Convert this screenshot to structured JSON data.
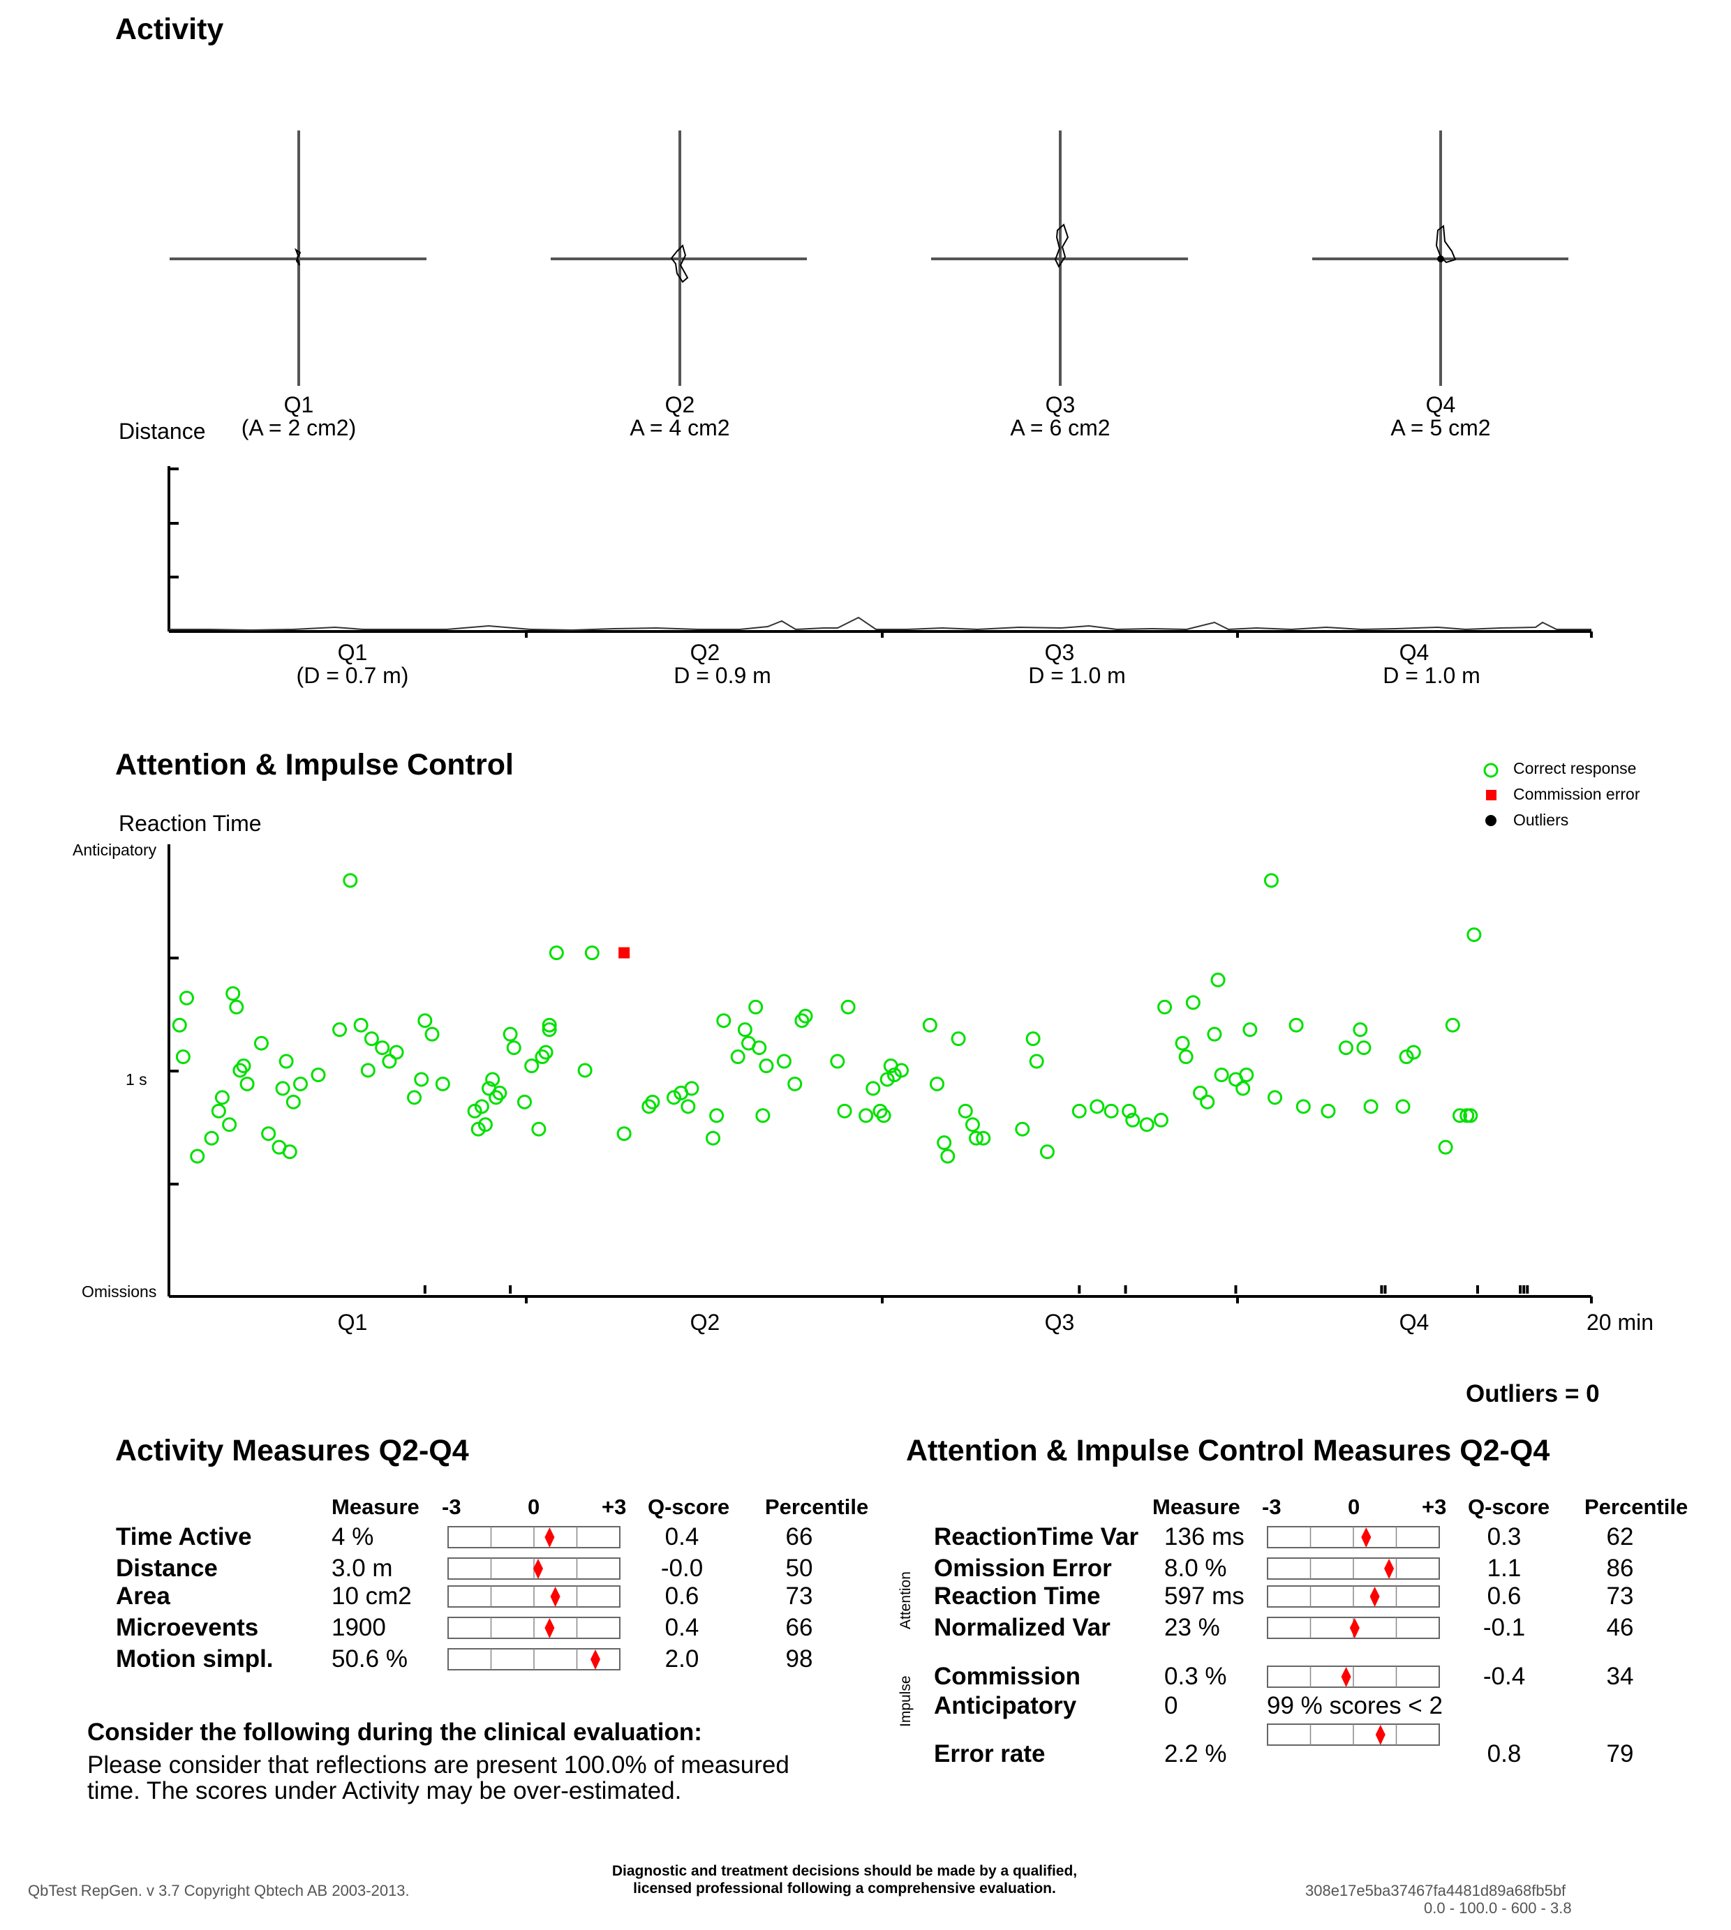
{
  "activity": {
    "title": "Activity",
    "quarters": [
      {
        "label": "Q1",
        "area": "(A = 2 cm2)",
        "distance": "(D =  0.7 m)"
      },
      {
        "label": "Q2",
        "area": "A = 4 cm2",
        "distance": "D =  0.9 m"
      },
      {
        "label": "Q3",
        "area": "A = 6 cm2",
        "distance": "D =  1.0 m"
      },
      {
        "label": "Q4",
        "area": "A = 5 cm2",
        "distance": "D =  1.0 m"
      }
    ],
    "distance_label": "Distance"
  },
  "attention": {
    "title": "Attention & Impulse Control",
    "reaction_time_label": "Reaction Time",
    "y_labels": {
      "top": "Anticipatory",
      "mid": "1 s",
      "bottom": "Omissions"
    },
    "x_labels": [
      "Q1",
      "Q2",
      "Q3",
      "Q4"
    ],
    "x_end_label": "20 min",
    "legend": [
      {
        "label": "Correct response",
        "color": "#00e000",
        "marker": "circle-open"
      },
      {
        "label": "Commission error",
        "color": "#ff0000",
        "marker": "square"
      },
      {
        "label": "Outliers",
        "color": "#000000",
        "marker": "circle-filled"
      }
    ],
    "outliers_text": "Outliers = 0"
  },
  "chart_data": {
    "type": "scatter",
    "xlabel": "",
    "ylabel": "Reaction Time",
    "xlim": [
      0,
      20
    ],
    "x_unit": "min",
    "y_ticks": [
      "Omissions",
      "",
      "1 s",
      "",
      "Anticipatory"
    ],
    "series": [
      {
        "name": "Correct response",
        "color": "#00e000",
        "points": [
          [
            0.15,
            0.6
          ],
          [
            0.2,
            0.53
          ],
          [
            0.25,
            0.66
          ],
          [
            0.4,
            0.31
          ],
          [
            0.6,
            0.35
          ],
          [
            0.7,
            0.41
          ],
          [
            0.75,
            0.44
          ],
          [
            0.85,
            0.38
          ],
          [
            0.9,
            0.67
          ],
          [
            0.95,
            0.64
          ],
          [
            1.0,
            0.5
          ],
          [
            1.05,
            0.51
          ],
          [
            1.6,
            0.46
          ],
          [
            1.65,
            0.52
          ],
          [
            1.3,
            0.56
          ],
          [
            1.1,
            0.47
          ],
          [
            1.4,
            0.36
          ],
          [
            1.55,
            0.33
          ],
          [
            1.7,
            0.32
          ],
          [
            1.75,
            0.43
          ],
          [
            1.85,
            0.47
          ],
          [
            2.1,
            0.49
          ],
          [
            2.4,
            0.59
          ],
          [
            2.55,
            0.92
          ],
          [
            2.7,
            0.6
          ],
          [
            2.8,
            0.5
          ],
          [
            2.85,
            0.57
          ],
          [
            3.0,
            0.55
          ],
          [
            3.1,
            0.52
          ],
          [
            3.2,
            0.54
          ],
          [
            3.45,
            0.44
          ],
          [
            3.55,
            0.48
          ],
          [
            3.6,
            0.61
          ],
          [
            3.7,
            0.58
          ],
          [
            3.85,
            0.47
          ],
          [
            4.3,
            0.41
          ],
          [
            4.35,
            0.37
          ],
          [
            4.4,
            0.42
          ],
          [
            4.45,
            0.38
          ],
          [
            4.5,
            0.46
          ],
          [
            4.55,
            0.48
          ],
          [
            4.6,
            0.44
          ],
          [
            4.65,
            0.45
          ],
          [
            4.8,
            0.58
          ],
          [
            4.85,
            0.55
          ],
          [
            5.0,
            0.43
          ],
          [
            5.1,
            0.51
          ],
          [
            5.2,
            0.37
          ],
          [
            5.25,
            0.53
          ],
          [
            5.3,
            0.54
          ],
          [
            5.35,
            0.6
          ],
          [
            5.35,
            0.59
          ],
          [
            5.45,
            0.76
          ],
          [
            5.85,
            0.5
          ],
          [
            5.95,
            0.76
          ],
          [
            6.4,
            0.36
          ],
          [
            6.75,
            0.42
          ],
          [
            6.8,
            0.43
          ],
          [
            7.1,
            0.44
          ],
          [
            7.2,
            0.45
          ],
          [
            7.3,
            0.42
          ],
          [
            7.35,
            0.46
          ],
          [
            7.65,
            0.35
          ],
          [
            7.7,
            0.4
          ],
          [
            7.8,
            0.61
          ],
          [
            8.0,
            0.53
          ],
          [
            8.1,
            0.59
          ],
          [
            8.15,
            0.56
          ],
          [
            8.25,
            0.64
          ],
          [
            8.3,
            0.55
          ],
          [
            8.35,
            0.4
          ],
          [
            8.4,
            0.51
          ],
          [
            8.65,
            0.52
          ],
          [
            8.8,
            0.47
          ],
          [
            8.9,
            0.61
          ],
          [
            8.95,
            0.62
          ],
          [
            9.4,
            0.52
          ],
          [
            9.5,
            0.41
          ],
          [
            9.55,
            0.64
          ],
          [
            9.8,
            0.4
          ],
          [
            9.9,
            0.46
          ],
          [
            10.0,
            0.41
          ],
          [
            10.05,
            0.4
          ],
          [
            10.1,
            0.48
          ],
          [
            10.15,
            0.51
          ],
          [
            10.2,
            0.49
          ],
          [
            10.3,
            0.5
          ],
          [
            10.7,
            0.6
          ],
          [
            10.8,
            0.47
          ],
          [
            10.9,
            0.34
          ],
          [
            10.95,
            0.31
          ],
          [
            11.1,
            0.57
          ],
          [
            11.2,
            0.41
          ],
          [
            11.3,
            0.38
          ],
          [
            11.35,
            0.35
          ],
          [
            11.45,
            0.35
          ],
          [
            12.0,
            0.37
          ],
          [
            12.15,
            0.57
          ],
          [
            12.2,
            0.52
          ],
          [
            12.35,
            0.32
          ],
          [
            12.8,
            0.41
          ],
          [
            13.05,
            0.42
          ],
          [
            13.25,
            0.41
          ],
          [
            13.5,
            0.41
          ],
          [
            13.55,
            0.39
          ],
          [
            13.75,
            0.38
          ],
          [
            13.95,
            0.39
          ],
          [
            14.0,
            0.64
          ],
          [
            14.25,
            0.56
          ],
          [
            14.3,
            0.53
          ],
          [
            14.4,
            0.65
          ],
          [
            14.5,
            0.45
          ],
          [
            14.6,
            0.43
          ],
          [
            14.7,
            0.58
          ],
          [
            14.75,
            0.7
          ],
          [
            14.8,
            0.49
          ],
          [
            15.0,
            0.48
          ],
          [
            15.1,
            0.46
          ],
          [
            15.15,
            0.49
          ],
          [
            15.2,
            0.59
          ],
          [
            15.5,
            0.92
          ],
          [
            15.55,
            0.44
          ],
          [
            15.85,
            0.6
          ],
          [
            15.95,
            0.42
          ],
          [
            16.3,
            0.41
          ],
          [
            16.55,
            0.55
          ],
          [
            16.75,
            0.59
          ],
          [
            16.8,
            0.55
          ],
          [
            16.9,
            0.42
          ],
          [
            17.35,
            0.42
          ],
          [
            17.4,
            0.53
          ],
          [
            17.5,
            0.54
          ],
          [
            17.95,
            0.33
          ],
          [
            18.05,
            0.6
          ],
          [
            18.15,
            0.4
          ],
          [
            18.25,
            0.4
          ],
          [
            18.3,
            0.4
          ],
          [
            18.35,
            0.8
          ]
        ]
      },
      {
        "name": "Commission error",
        "color": "#ff0000",
        "points": [
          [
            6.4,
            0.76
          ]
        ]
      },
      {
        "name": "Outliers",
        "color": "#000000",
        "points": []
      }
    ],
    "omission_ticks_min": [
      3.6,
      4.8,
      12.8,
      13.45,
      15.0,
      17.05,
      17.1,
      18.4,
      19.0,
      19.05,
      19.1
    ]
  },
  "activity_measures": {
    "title": "Activity Measures Q2-Q4",
    "headers": {
      "measure": "Measure",
      "scale_left": "-3",
      "scale_mid": "0",
      "scale_right": "+3",
      "qscore": "Q-score",
      "percentile": "Percentile"
    },
    "rows": [
      {
        "name": "Time Active",
        "measure": "4 %",
        "qscore": "0.4",
        "qscore_value": 0.4,
        "percentile": "66"
      },
      {
        "name": "Distance",
        "measure": "3.0 m",
        "qscore": "-0.0",
        "qscore_value": 0.0,
        "percentile": "50"
      },
      {
        "name": "Area",
        "measure": "10 cm2",
        "qscore": "0.6",
        "qscore_value": 0.6,
        "percentile": "73"
      },
      {
        "name": "Microevents",
        "measure": "1900",
        "qscore": "0.4",
        "qscore_value": 0.4,
        "percentile": "66"
      },
      {
        "name": "Motion simpl.",
        "measure": "50.6 %",
        "qscore": "2.0",
        "qscore_value": 2.0,
        "percentile": "98"
      }
    ]
  },
  "attention_measures": {
    "title": "Attention & Impulse Control Measures Q2-Q4",
    "headers": {
      "measure": "Measure",
      "scale_left": "-3",
      "scale_mid": "0",
      "scale_right": "+3",
      "qscore": "Q-score",
      "percentile": "Percentile"
    },
    "group_attention": "Attention",
    "group_impulse": "Impulse",
    "rows": [
      {
        "name": "ReactionTime Var",
        "measure": "136 ms",
        "qscore": "0.3",
        "qscore_value": 0.3,
        "percentile": "62"
      },
      {
        "name": "Omission Error",
        "measure": "8.0 %",
        "qscore": "1.1",
        "qscore_value": 1.1,
        "percentile": "86"
      },
      {
        "name": "Reaction Time",
        "measure": "597 ms",
        "qscore": "0.6",
        "qscore_value": 0.6,
        "percentile": "73"
      },
      {
        "name": "Normalized Var",
        "measure": "23 %",
        "qscore": "-0.1",
        "qscore_value": -0.1,
        "percentile": "46"
      },
      {
        "name": "Commission",
        "measure": "0.3 %",
        "qscore": "-0.4",
        "qscore_value": -0.4,
        "percentile": "34"
      },
      {
        "name": "Anticipatory",
        "measure": "0",
        "note": "99 % scores < 2"
      },
      {
        "name": "Error rate",
        "measure": "2.2 %",
        "qscore": "0.8",
        "qscore_value": 0.8,
        "percentile": "79"
      }
    ]
  },
  "clinical": {
    "title": "Consider the following during the clinical evaluation:",
    "line1": "Please consider that reflections are present 100.0% of measured",
    "line2": "time. The scores under Activity may be over-estimated."
  },
  "footer": {
    "left": "QbTest RepGen. v 3.7 Copyright Qbtech AB 2003-2013.",
    "center1": "Diagnostic and treatment decisions should be made by a qualified,",
    "center2": "licensed professional following a comprehensive evaluation.",
    "right1": "308e17e5ba37467fa4481d89a68fb5bf",
    "right2": "0.0 - 100.0 - 600 - 3.8"
  },
  "colors": {
    "correct": "#00e000",
    "commission": "#ff0000",
    "marker": "#ff0000",
    "axis": "#000000",
    "crosshair": "#555555"
  }
}
